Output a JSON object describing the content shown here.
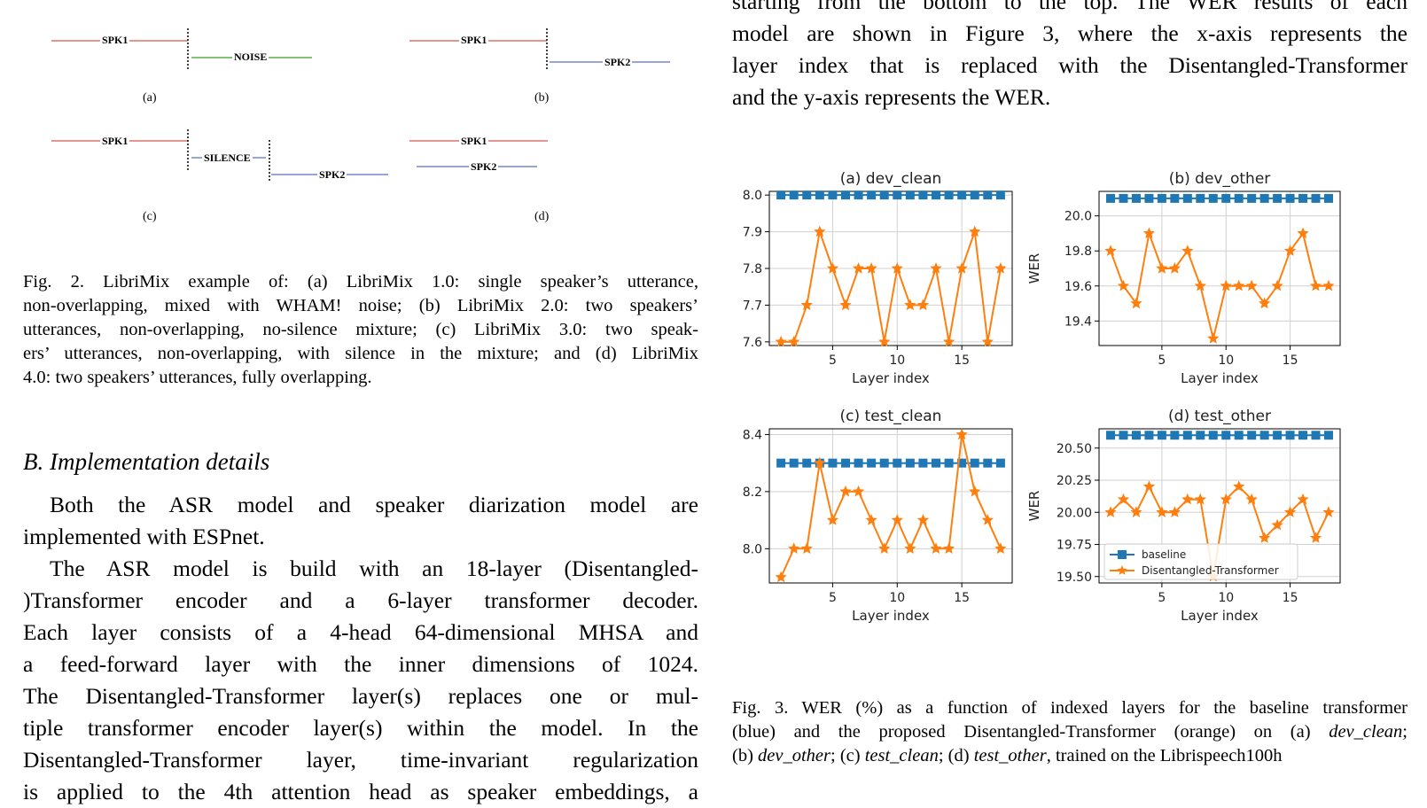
{
  "figure2": {
    "diagrams": {
      "a": {
        "spk1": "SPK1",
        "noise": "NOISE",
        "label": "(a)"
      },
      "b": {
        "spk1": "SPK1",
        "spk2": "SPK2",
        "label": "(b)"
      },
      "c": {
        "spk1": "SPK1",
        "silence": "SILENCE",
        "spk2": "SPK2",
        "label": "(c)"
      },
      "d": {
        "spk1": "SPK1",
        "spk2": "SPK2",
        "label": "(d)"
      }
    },
    "caption_lines": [
      "Fig. 2.  LibriMix example of: (a) LibriMix 1.0: single speaker’s utterance,",
      "non-overlapping, mixed with WHAM! noise; (b) LibriMix 2.0: two speakers’",
      "utterances, non-overlapping, no-silence mixture; (c) LibriMix 3.0: two speak-",
      "ers’ utterances, non-overlapping, with silence in the mixture; and (d) LibriMix",
      "4.0: two speakers’ utterances, fully overlapping."
    ]
  },
  "section": {
    "heading": "B.  Implementation details",
    "lines": [
      "Both the ASR model and speaker diarization model are",
      "implemented with ESPnet.",
      "The ASR model is build with an 18-layer (Disentangled-",
      ")Transformer encoder and a 6-layer transformer decoder.",
      "Each layer consists of a 4-head 64-dimensional MHSA and",
      "a feed-forward layer with the inner dimensions of 1024.",
      "The Disentangled-Transformer layer(s) replaces one or mul-",
      "tiple transformer encoder layer(s) within the model. In the",
      "Disentangled-Transformer layer, time-invariant regularization",
      "is applied to the 4th attention head as speaker embeddings, a"
    ]
  },
  "right_text": {
    "lines": [
      "starting from the bottom to the top. The WER results of each",
      "model are shown in Figure 3, where the x-axis represents the",
      "layer index that is replaced with the Disentangled-Transformer",
      "and the y-axis represents the WER."
    ]
  },
  "figure3_caption": {
    "line1": "Fig. 3.  WER (%) as a function of indexed layers for the baseline transformer",
    "line2_pre": "(blue) and the proposed Disentangled-Transformer (orange) on (a) ",
    "line2_it": "dev_clean",
    "line2_post": ";",
    "line3_a": "(b) ",
    "line3_b": "dev_other",
    "line3_c": "; (c) ",
    "line3_d": "test_clean",
    "line3_e": "; (d) ",
    "line3_f": "test_other",
    "line3_g": ", trained on the Librispeech100h"
  },
  "chart_data": [
    {
      "type": "line",
      "title": "(a) dev_clean",
      "xlabel": "Layer index",
      "ylabel": "WER",
      "x": [
        1,
        2,
        3,
        4,
        5,
        6,
        7,
        8,
        9,
        10,
        11,
        12,
        13,
        14,
        15,
        16,
        17,
        18
      ],
      "xticks": [
        5,
        10,
        15
      ],
      "ylim": [
        7.59,
        8.01
      ],
      "yticks": [
        7.6,
        7.7,
        7.8,
        7.9,
        8.0
      ],
      "grid": true,
      "series": [
        {
          "name": "baseline",
          "color": "#1f77b4",
          "marker": "square",
          "values": [
            8.0,
            8.0,
            8.0,
            8.0,
            8.0,
            8.0,
            8.0,
            8.0,
            8.0,
            8.0,
            8.0,
            8.0,
            8.0,
            8.0,
            8.0,
            8.0,
            8.0,
            8.0
          ]
        },
        {
          "name": "Disentangled-Transformer",
          "color": "#ff7f0e",
          "marker": "star",
          "values": [
            7.6,
            7.6,
            7.7,
            7.9,
            7.8,
            7.7,
            7.8,
            7.8,
            7.6,
            7.8,
            7.7,
            7.7,
            7.8,
            7.6,
            7.8,
            7.9,
            7.6,
            7.8
          ]
        }
      ]
    },
    {
      "type": "line",
      "title": "(b) dev_other",
      "xlabel": "Layer index",
      "ylabel": "WER",
      "x": [
        1,
        2,
        3,
        4,
        5,
        6,
        7,
        8,
        9,
        10,
        11,
        12,
        13,
        14,
        15,
        16,
        17,
        18
      ],
      "xticks": [
        5,
        10,
        15
      ],
      "ylim": [
        19.26,
        20.14
      ],
      "yticks": [
        19.4,
        19.6,
        19.8,
        20.0
      ],
      "grid": true,
      "series": [
        {
          "name": "baseline",
          "color": "#1f77b4",
          "marker": "square",
          "values": [
            20.1,
            20.1,
            20.1,
            20.1,
            20.1,
            20.1,
            20.1,
            20.1,
            20.1,
            20.1,
            20.1,
            20.1,
            20.1,
            20.1,
            20.1,
            20.1,
            20.1,
            20.1
          ]
        },
        {
          "name": "Disentangled-Transformer",
          "color": "#ff7f0e",
          "marker": "star",
          "values": [
            19.8,
            19.6,
            19.5,
            19.9,
            19.7,
            19.7,
            19.8,
            19.6,
            19.3,
            19.6,
            19.6,
            19.6,
            19.5,
            19.6,
            19.8,
            19.9,
            19.6,
            19.6
          ]
        }
      ]
    },
    {
      "type": "line",
      "title": "(c) test_clean",
      "xlabel": "Layer index",
      "ylabel": "WER",
      "x": [
        1,
        2,
        3,
        4,
        5,
        6,
        7,
        8,
        9,
        10,
        11,
        12,
        13,
        14,
        15,
        16,
        17,
        18
      ],
      "xticks": [
        5,
        10,
        15
      ],
      "ylim": [
        7.88,
        8.42
      ],
      "yticks": [
        8.0,
        8.2,
        8.4
      ],
      "grid": true,
      "series": [
        {
          "name": "baseline",
          "color": "#1f77b4",
          "marker": "square",
          "values": [
            8.3,
            8.3,
            8.3,
            8.3,
            8.3,
            8.3,
            8.3,
            8.3,
            8.3,
            8.3,
            8.3,
            8.3,
            8.3,
            8.3,
            8.3,
            8.3,
            8.3,
            8.3
          ]
        },
        {
          "name": "Disentangled-Transformer",
          "color": "#ff7f0e",
          "marker": "star",
          "values": [
            7.9,
            8.0,
            8.0,
            8.3,
            8.1,
            8.2,
            8.2,
            8.1,
            8.0,
            8.1,
            8.0,
            8.1,
            8.0,
            8.0,
            8.4,
            8.2,
            8.1,
            8.0
          ]
        }
      ]
    },
    {
      "type": "line",
      "title": "(d) test_other",
      "xlabel": "Layer index",
      "ylabel": "WER",
      "x": [
        1,
        2,
        3,
        4,
        5,
        6,
        7,
        8,
        9,
        10,
        11,
        12,
        13,
        14,
        15,
        16,
        17,
        18
      ],
      "xticks": [
        5,
        10,
        15
      ],
      "ylim": [
        19.45,
        20.65
      ],
      "yticks": [
        19.5,
        19.75,
        20.0,
        20.25,
        20.5
      ],
      "yticklabels": [
        "19.50",
        "19.75",
        "20.00",
        "20.25",
        "20.50"
      ],
      "grid": true,
      "legend": "lower-left",
      "series": [
        {
          "name": "baseline",
          "color": "#1f77b4",
          "marker": "square",
          "values": [
            20.6,
            20.6,
            20.6,
            20.6,
            20.6,
            20.6,
            20.6,
            20.6,
            20.6,
            20.6,
            20.6,
            20.6,
            20.6,
            20.6,
            20.6,
            20.6,
            20.6,
            20.6
          ]
        },
        {
          "name": "Disentangled-Transformer",
          "color": "#ff7f0e",
          "marker": "star",
          "values": [
            20.0,
            20.1,
            20.0,
            20.2,
            20.0,
            20.0,
            20.1,
            20.1,
            19.5,
            20.1,
            20.2,
            20.1,
            19.8,
            19.9,
            20.0,
            20.1,
            19.8,
            20.0
          ]
        }
      ]
    }
  ]
}
